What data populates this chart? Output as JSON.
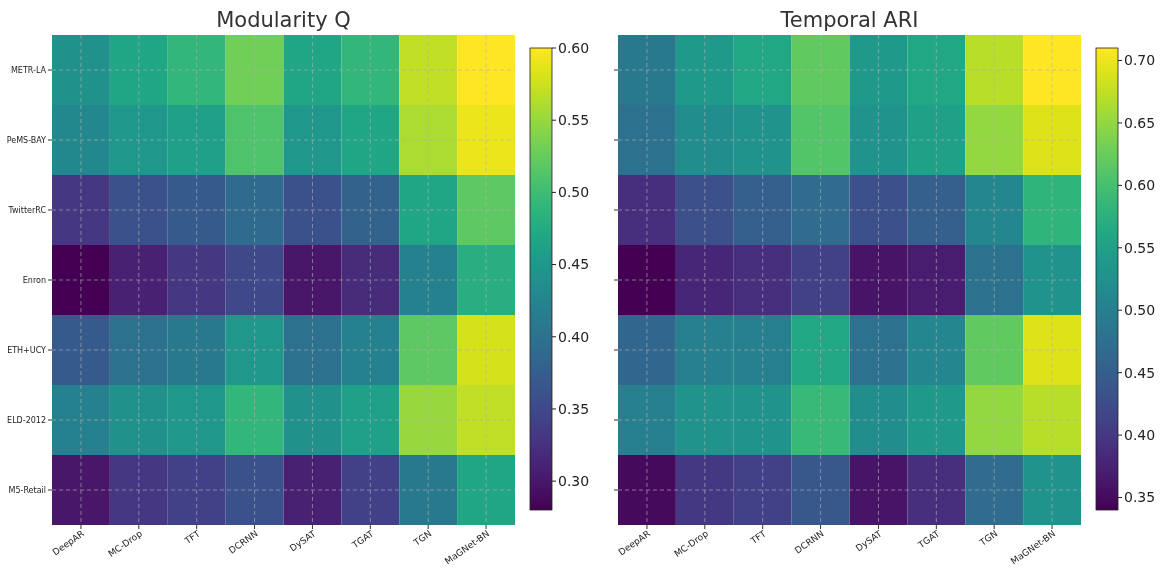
{
  "chart_data": [
    {
      "type": "heatmap",
      "title": "Modularity Q",
      "categories": [
        "DeepAR",
        "MC-Drop",
        "TFT",
        "DCRNN",
        "DySAT",
        "TGAT",
        "TGN",
        "MaGNet-BN"
      ],
      "y_categories": [
        "METR-LA",
        "PeMS-BAY",
        "TwitterRC",
        "Enron",
        "ETH+UCY",
        "ELD-2012",
        "M5-Retail"
      ],
      "cells": [
        [
          0.44,
          0.47,
          0.49,
          0.53,
          0.47,
          0.49,
          0.57,
          0.6
        ],
        [
          0.43,
          0.45,
          0.46,
          0.51,
          0.45,
          0.47,
          0.56,
          0.59
        ],
        [
          0.33,
          0.36,
          0.37,
          0.39,
          0.36,
          0.38,
          0.47,
          0.52
        ],
        [
          0.28,
          0.31,
          0.33,
          0.35,
          0.3,
          0.32,
          0.42,
          0.48
        ],
        [
          0.37,
          0.4,
          0.41,
          0.45,
          0.4,
          0.42,
          0.52,
          0.58
        ],
        [
          0.42,
          0.44,
          0.45,
          0.49,
          0.44,
          0.46,
          0.55,
          0.57
        ],
        [
          0.3,
          0.33,
          0.34,
          0.36,
          0.31,
          0.34,
          0.41,
          0.47
        ]
      ],
      "clim": [
        0.28,
        0.6
      ],
      "cticks": [
        {
          "value": 0.3,
          "label": "0.30"
        },
        {
          "value": 0.35,
          "label": "0.35"
        },
        {
          "value": 0.4,
          "label": "0.40"
        },
        {
          "value": 0.45,
          "label": "0.45"
        },
        {
          "value": 0.5,
          "label": "0.50"
        },
        {
          "value": 0.55,
          "label": "0.55"
        },
        {
          "value": 0.6,
          "label": "0.60"
        }
      ],
      "grid": true
    },
    {
      "type": "heatmap",
      "title": "Temporal ARI",
      "categories": [
        "DeepAR",
        "MC-Drop",
        "TFT",
        "DCRNN",
        "DySAT",
        "TGAT",
        "TGN",
        "MaGNet-BN"
      ],
      "y_categories": [
        null,
        null,
        null,
        null,
        null,
        null,
        null
      ],
      "cells": [
        [
          0.49,
          0.54,
          0.56,
          0.62,
          0.54,
          0.56,
          0.67,
          0.71
        ],
        [
          0.48,
          0.52,
          0.53,
          0.61,
          0.53,
          0.55,
          0.65,
          0.69
        ],
        [
          0.39,
          0.43,
          0.45,
          0.47,
          0.43,
          0.45,
          0.51,
          0.58
        ],
        [
          0.34,
          0.38,
          0.39,
          0.41,
          0.36,
          0.37,
          0.48,
          0.53
        ],
        [
          0.46,
          0.5,
          0.5,
          0.56,
          0.48,
          0.51,
          0.62,
          0.69
        ],
        [
          0.5,
          0.53,
          0.53,
          0.59,
          0.52,
          0.54,
          0.65,
          0.67
        ],
        [
          0.35,
          0.4,
          0.41,
          0.44,
          0.36,
          0.39,
          0.47,
          0.53
        ]
      ],
      "clim": [
        0.34,
        0.71
      ],
      "cticks": [
        {
          "value": 0.35,
          "label": "0.35"
        },
        {
          "value": 0.4,
          "label": "0.40"
        },
        {
          "value": 0.45,
          "label": "0.45"
        },
        {
          "value": 0.5,
          "label": "0.50"
        },
        {
          "value": 0.55,
          "label": "0.55"
        },
        {
          "value": 0.6,
          "label": "0.60"
        },
        {
          "value": 0.65,
          "label": "0.65"
        },
        {
          "value": 0.7,
          "label": "0.70"
        }
      ],
      "grid": true
    }
  ]
}
